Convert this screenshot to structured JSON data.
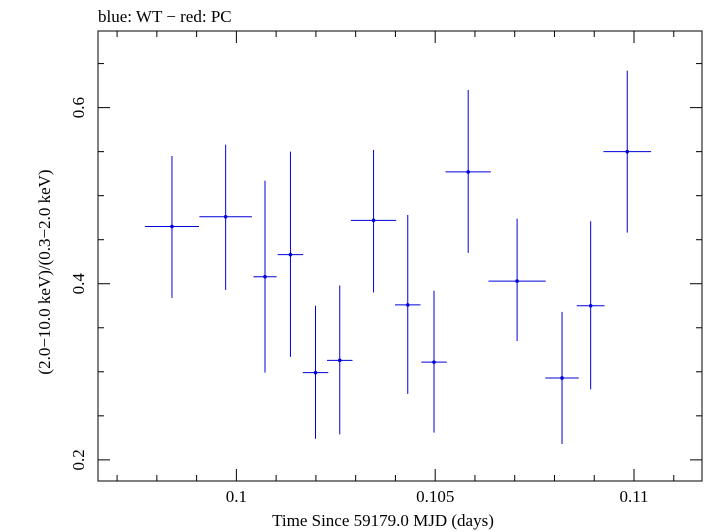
{
  "chart_data": {
    "type": "scatter",
    "title": "blue: WT − red: PC",
    "xlabel": "Time Since 59179.0 MJD (days)",
    "ylabel": "(2.0−10.0 keV)/(0.3−2.0 keV)",
    "xlim": [
      0.09652,
      0.11171
    ],
    "ylim": [
      0.176,
      0.687
    ],
    "x_ticks": [
      0.1,
      0.105,
      0.11
    ],
    "x_tick_labels": [
      "0.1",
      "0.105",
      "0.11"
    ],
    "y_ticks": [
      0.2,
      0.4,
      0.6
    ],
    "y_tick_labels": [
      "0.2",
      "0.4",
      "0.6"
    ],
    "grid": false,
    "series": [
      {
        "color": "#0000dd",
        "points": [
          {
            "x": 0.09838,
            "y": 0.465,
            "xerr": 0.00068,
            "ylo": 0.384,
            "yhi": 0.545
          },
          {
            "x": 0.09973,
            "y": 0.476,
            "xerr": 0.00066,
            "ylo": 0.393,
            "yhi": 0.558
          },
          {
            "x": 0.10072,
            "y": 0.408,
            "xerr": 0.00029,
            "ylo": 0.299,
            "yhi": 0.517
          },
          {
            "x": 0.10136,
            "y": 0.433,
            "xerr": 0.00032,
            "ylo": 0.317,
            "yhi": 0.55
          },
          {
            "x": 0.10199,
            "y": 0.299,
            "xerr": 0.00032,
            "ylo": 0.224,
            "yhi": 0.375
          },
          {
            "x": 0.1026,
            "y": 0.313,
            "xerr": 0.00032,
            "ylo": 0.229,
            "yhi": 0.398
          },
          {
            "x": 0.10345,
            "y": 0.472,
            "xerr": 0.00057,
            "ylo": 0.39,
            "yhi": 0.552
          },
          {
            "x": 0.10431,
            "y": 0.376,
            "xerr": 0.00032,
            "ylo": 0.275,
            "yhi": 0.478
          },
          {
            "x": 0.10497,
            "y": 0.311,
            "xerr": 0.00032,
            "ylo": 0.231,
            "yhi": 0.392
          },
          {
            "x": 0.10583,
            "y": 0.527,
            "xerr": 0.00057,
            "ylo": 0.435,
            "yhi": 0.62
          },
          {
            "x": 0.10706,
            "y": 0.403,
            "xerr": 0.00072,
            "ylo": 0.335,
            "yhi": 0.474
          },
          {
            "x": 0.10819,
            "y": 0.293,
            "xerr": 0.00042,
            "ylo": 0.218,
            "yhi": 0.368
          },
          {
            "x": 0.10891,
            "y": 0.375,
            "xerr": 0.00035,
            "ylo": 0.28,
            "yhi": 0.471
          },
          {
            "x": 0.10983,
            "y": 0.55,
            "xerr": 0.0006,
            "ylo": 0.458,
            "yhi": 0.642
          }
        ]
      }
    ]
  }
}
